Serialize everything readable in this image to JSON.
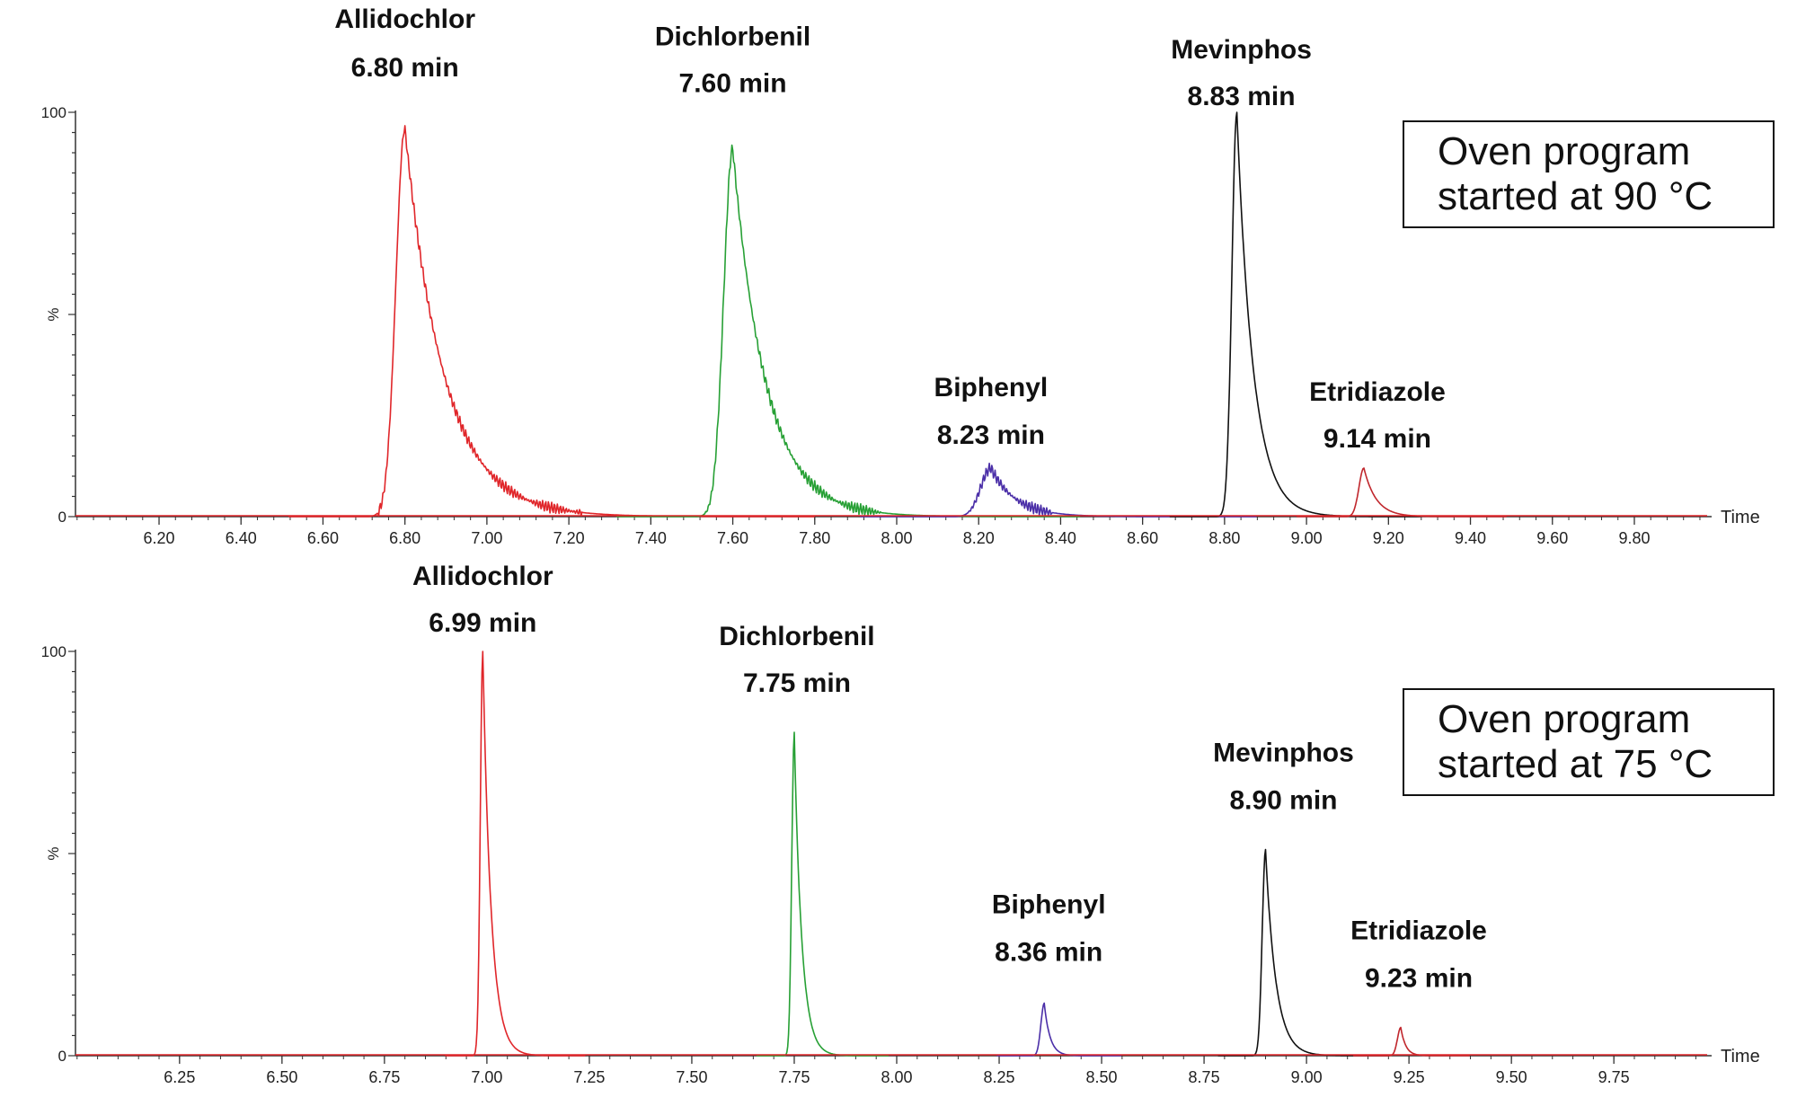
{
  "chart_data": [
    {
      "type": "line",
      "xlabel": "Time",
      "ylabel": "%",
      "xlim": [
        6.0,
        10.0
      ],
      "ylim": [
        0,
        100
      ],
      "x_ticks": [
        "6.20",
        "6.40",
        "6.60",
        "6.80",
        "7.00",
        "7.20",
        "7.40",
        "7.60",
        "7.80",
        "8.00",
        "8.20",
        "8.40",
        "8.60",
        "8.80",
        "9.00",
        "9.20",
        "9.40",
        "9.60",
        "9.80"
      ],
      "x_tick_values": [
        6.2,
        6.4,
        6.6,
        6.8,
        7.0,
        7.2,
        7.4,
        7.6,
        7.8,
        8.0,
        8.2,
        8.4,
        8.6,
        8.8,
        9.0,
        9.2,
        9.4,
        9.6,
        9.8
      ],
      "y_ticks": [
        "0",
        "100"
      ],
      "annotation": [
        "Oven program",
        "started at 90 °C"
      ],
      "series": [
        {
          "name": "Allidochlor",
          "label_time": "6.80 min",
          "color": "#e0262a",
          "rt": 6.8,
          "height": 96,
          "sigma_left": 0.022,
          "tau": 0.095
        },
        {
          "name": "Dichlorbenil",
          "label_time": "7.60 min",
          "color": "#27a035",
          "rt": 7.6,
          "height": 91,
          "sigma_left": 0.022,
          "tau": 0.08
        },
        {
          "name": "Biphenyl",
          "label_time": "8.23 min",
          "color": "#4b2fa8",
          "rt": 8.23,
          "height": 12,
          "sigma_left": 0.025,
          "tau": 0.06
        },
        {
          "name": "Mevinphos",
          "label_time": "8.83 min",
          "color": "#111111",
          "rt": 8.83,
          "height": 100,
          "sigma_left": 0.012,
          "tau": 0.04
        },
        {
          "name": "Etridiazole",
          "label_time": "9.14 min",
          "color": "#c0272d",
          "rt": 9.14,
          "height": 12,
          "sigma_left": 0.012,
          "tau": 0.03
        }
      ]
    },
    {
      "type": "line",
      "xlabel": "Time",
      "ylabel": "%",
      "xlim": [
        6.0,
        10.0
      ],
      "ylim": [
        0,
        100
      ],
      "x_ticks": [
        "6.25",
        "6.50",
        "6.75",
        "7.00",
        "7.25",
        "7.50",
        "7.75",
        "8.00",
        "8.25",
        "8.50",
        "8.75",
        "9.00",
        "9.25",
        "9.50",
        "9.75"
      ],
      "x_tick_values": [
        6.25,
        6.5,
        6.75,
        7.0,
        7.25,
        7.5,
        7.75,
        8.0,
        8.25,
        8.5,
        8.75,
        9.0,
        9.25,
        9.5,
        9.75
      ],
      "y_ticks": [
        "0",
        "100"
      ],
      "annotation": [
        "Oven program",
        "started at 75 °C"
      ],
      "series": [
        {
          "name": "Allidochlor",
          "label_time": "6.99 min",
          "color": "#e0262a",
          "rt": 6.99,
          "height": 100,
          "sigma_left": 0.006,
          "tau": 0.02
        },
        {
          "name": "Dichlorbenil",
          "label_time": "7.75 min",
          "color": "#27a035",
          "rt": 7.75,
          "height": 80,
          "sigma_left": 0.006,
          "tau": 0.018
        },
        {
          "name": "Biphenyl",
          "label_time": "8.36 min",
          "color": "#4b2fa8",
          "rt": 8.36,
          "height": 13,
          "sigma_left": 0.008,
          "tau": 0.014
        },
        {
          "name": "Mevinphos",
          "label_time": "8.90 min",
          "color": "#111111",
          "rt": 8.9,
          "height": 51,
          "sigma_left": 0.008,
          "tau": 0.025
        },
        {
          "name": "Etridiazole",
          "label_time": "9.23 min",
          "color": "#c0272d",
          "rt": 9.23,
          "height": 7,
          "sigma_left": 0.008,
          "tau": 0.012
        }
      ]
    }
  ]
}
